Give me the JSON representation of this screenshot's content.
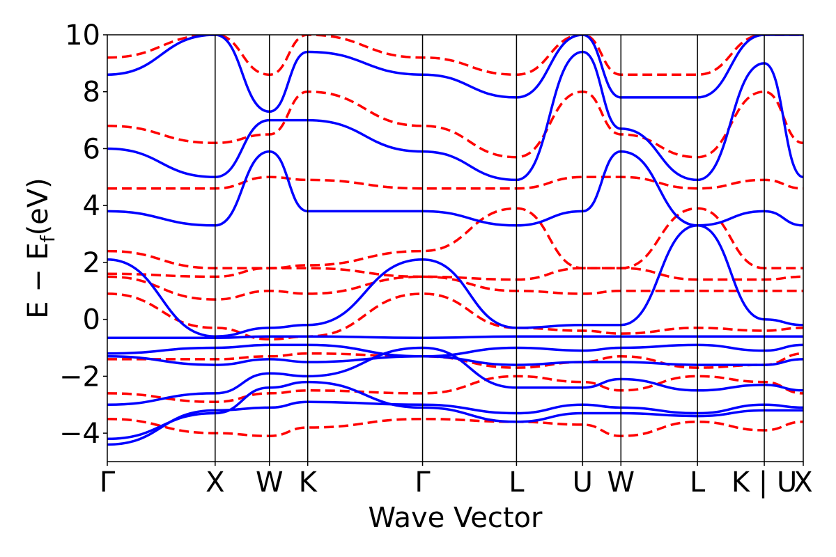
{
  "chart_data": {
    "type": "line",
    "title": "",
    "xlabel": "Wave Vector",
    "ylabel": "E − E",
    "ylabel_subscript": "f",
    "ylabel_unit": "(eV)",
    "ylim": [
      -5,
      10
    ],
    "yticks": [
      -4,
      -2,
      0,
      2,
      4,
      6,
      8,
      10
    ],
    "ytick_labels": [
      "−4",
      "−2",
      "0",
      "2",
      "4",
      "6",
      "8",
      "10"
    ],
    "xlim": [
      0,
      1
    ],
    "kpoints": [
      {
        "label": "Γ",
        "x": 0.0
      },
      {
        "label": "X",
        "x": 0.155
      },
      {
        "label": "W",
        "x": 0.233
      },
      {
        "label": "K",
        "x": 0.288
      },
      {
        "label": "Γ",
        "x": 0.453
      },
      {
        "label": "L",
        "x": 0.588
      },
      {
        "label": "U",
        "x": 0.683
      },
      {
        "label": "W",
        "x": 0.738
      },
      {
        "label": "L",
        "x": 0.848
      },
      {
        "label": "K | U",
        "x": 0.944
      },
      {
        "label": "X",
        "x": 1.0
      }
    ],
    "grid": false,
    "legend": "none",
    "series_styles": [
      {
        "id": "solid",
        "color": "#0000ff",
        "style": "solid"
      },
      {
        "id": "dashed",
        "color": "#ff0000",
        "style": "dashed"
      }
    ],
    "series": [
      {
        "style": "solid",
        "x": [
          0,
          0.155,
          0.233,
          0.288,
          0.453,
          0.588,
          0.683,
          0.738,
          0.848,
          0.944,
          1.0
        ],
        "y": [
          -4.4,
          -3.2,
          -3.1,
          -2.9,
          -3.0,
          -3.3,
          -3.0,
          -3.1,
          -3.3,
          -3.0,
          -3.1
        ]
      },
      {
        "style": "solid",
        "x": [
          0,
          0.155,
          0.233,
          0.288,
          0.453,
          0.588,
          0.683,
          0.738,
          0.848,
          0.944,
          1.0
        ],
        "y": [
          -4.2,
          -3.3,
          -2.4,
          -2.2,
          -3.1,
          -3.6,
          -3.3,
          -3.3,
          -3.4,
          -3.2,
          -3.2
        ]
      },
      {
        "style": "solid",
        "x": [
          0,
          0.155,
          0.233,
          0.288,
          0.453,
          0.588,
          0.683,
          0.738,
          0.848,
          0.944,
          1.0
        ],
        "y": [
          -3.0,
          -2.6,
          -1.9,
          -2.0,
          -1.0,
          -2.4,
          -2.4,
          -2.1,
          -2.5,
          -2.3,
          -2.5
        ]
      },
      {
        "style": "solid",
        "x": [
          0,
          0.155,
          0.233,
          0.288,
          0.453,
          0.588,
          0.683,
          0.738,
          0.848,
          0.944,
          1.0
        ],
        "y": [
          -1.3,
          -1.6,
          -1.4,
          -1.5,
          -1.3,
          -1.6,
          -1.5,
          -1.5,
          -1.6,
          -1.6,
          -1.4
        ]
      },
      {
        "style": "solid",
        "x": [
          0,
          0.155,
          0.233,
          0.288,
          0.453,
          0.588,
          0.683,
          0.738,
          0.848,
          0.944,
          1.0
        ],
        "y": [
          -1.2,
          -1.0,
          -0.9,
          -0.9,
          -1.3,
          -1.0,
          -1.1,
          -1.0,
          -0.9,
          -1.1,
          -0.9
        ]
      },
      {
        "style": "solid",
        "x": [
          0,
          0.155,
          0.233,
          0.288,
          0.453,
          0.588,
          0.683,
          0.738,
          0.848,
          0.944,
          1.0
        ],
        "y": [
          -0.65,
          -0.65,
          -0.6,
          -0.6,
          -0.65,
          -0.6,
          -0.6,
          -0.6,
          -0.6,
          -0.6,
          -0.6
        ]
      },
      {
        "style": "solid",
        "x": [
          0,
          0.155,
          0.233,
          0.288,
          0.453,
          0.588,
          0.683,
          0.738,
          0.848,
          0.944,
          1.0
        ],
        "y": [
          2.1,
          -0.6,
          -0.3,
          -0.2,
          2.1,
          -0.3,
          -0.2,
          -0.2,
          3.3,
          0.0,
          -0.2
        ]
      },
      {
        "style": "solid",
        "x": [
          0,
          0.155,
          0.233,
          0.288,
          0.453,
          0.588,
          0.683,
          0.738,
          0.848,
          0.944,
          1.0
        ],
        "y": [
          3.8,
          3.3,
          5.9,
          3.8,
          3.8,
          3.3,
          3.8,
          5.9,
          3.3,
          3.8,
          3.3
        ]
      },
      {
        "style": "solid",
        "x": [
          0,
          0.155,
          0.233,
          0.288,
          0.453,
          0.588,
          0.683,
          0.738,
          0.848,
          0.944,
          1.0
        ],
        "y": [
          6.0,
          5.0,
          7.0,
          7.0,
          5.9,
          4.9,
          9.4,
          6.7,
          4.9,
          9.0,
          5.0
        ]
      },
      {
        "style": "solid",
        "x": [
          0,
          0.155,
          0.233,
          0.288,
          0.453,
          0.588,
          0.683,
          0.738,
          0.848,
          0.944,
          1.0
        ],
        "y": [
          8.6,
          10.0,
          7.3,
          9.4,
          8.6,
          7.8,
          10.0,
          7.8,
          7.8,
          10.0,
          10.0
        ]
      },
      {
        "style": "dashed",
        "x": [
          0,
          0.155,
          0.233,
          0.288,
          0.453,
          0.588,
          0.683,
          0.738,
          0.848,
          0.944,
          1.0
        ],
        "y": [
          -3.5,
          -4.0,
          -4.1,
          -3.8,
          -3.5,
          -3.6,
          -3.7,
          -4.1,
          -3.6,
          -3.9,
          -3.6
        ]
      },
      {
        "style": "dashed",
        "x": [
          0,
          0.155,
          0.233,
          0.288,
          0.453,
          0.588,
          0.683,
          0.738,
          0.848,
          0.944,
          1.0
        ],
        "y": [
          -2.6,
          -2.9,
          -2.6,
          -2.5,
          -2.6,
          -2.0,
          -2.2,
          -2.5,
          -2.0,
          -2.2,
          -2.6
        ]
      },
      {
        "style": "dashed",
        "x": [
          0,
          0.155,
          0.233,
          0.288,
          0.453,
          0.588,
          0.683,
          0.738,
          0.848,
          0.944,
          1.0
        ],
        "y": [
          -1.4,
          -1.4,
          -1.3,
          -1.2,
          -1.3,
          -1.7,
          -1.5,
          -1.3,
          -1.7,
          -1.6,
          -1.2
        ]
      },
      {
        "style": "dashed",
        "x": [
          0,
          0.155,
          0.233,
          0.288,
          0.453,
          0.588,
          0.683,
          0.738,
          0.848,
          0.944,
          1.0
        ],
        "y": [
          0.9,
          -0.3,
          -0.7,
          -0.6,
          0.9,
          -0.3,
          -0.4,
          -0.5,
          -0.3,
          -0.4,
          -0.3
        ]
      },
      {
        "style": "dashed",
        "x": [
          0,
          0.155,
          0.233,
          0.288,
          0.453,
          0.588,
          0.683,
          0.738,
          0.848,
          0.944,
          1.0
        ],
        "y": [
          1.5,
          0.7,
          1.0,
          0.9,
          1.5,
          1.0,
          0.9,
          1.0,
          1.0,
          1.0,
          1.0
        ]
      },
      {
        "style": "dashed",
        "x": [
          0,
          0.155,
          0.233,
          0.288,
          0.453,
          0.588,
          0.683,
          0.738,
          0.848,
          0.944,
          1.0
        ],
        "y": [
          1.6,
          1.5,
          1.8,
          1.8,
          1.5,
          1.4,
          1.8,
          1.8,
          1.4,
          1.4,
          1.5
        ]
      },
      {
        "style": "dashed",
        "x": [
          0,
          0.155,
          0.233,
          0.288,
          0.453,
          0.588,
          0.683,
          0.738,
          0.848,
          0.944,
          1.0
        ],
        "y": [
          2.4,
          1.8,
          1.8,
          1.9,
          2.4,
          3.9,
          1.8,
          1.8,
          3.9,
          1.8,
          1.8
        ]
      },
      {
        "style": "dashed",
        "x": [
          0,
          0.155,
          0.233,
          0.288,
          0.453,
          0.588,
          0.683,
          0.738,
          0.848,
          0.944,
          1.0
        ],
        "y": [
          4.6,
          4.6,
          5.0,
          4.9,
          4.6,
          4.6,
          5.0,
          5.0,
          4.6,
          4.9,
          4.6
        ]
      },
      {
        "style": "dashed",
        "x": [
          0,
          0.155,
          0.233,
          0.288,
          0.453,
          0.588,
          0.683,
          0.738,
          0.848,
          0.944,
          1.0
        ],
        "y": [
          6.8,
          6.2,
          6.5,
          8.0,
          6.8,
          5.7,
          8.0,
          6.5,
          5.7,
          8.0,
          6.2
        ]
      },
      {
        "style": "dashed",
        "x": [
          0,
          0.155,
          0.233,
          0.288,
          0.453,
          0.588,
          0.683,
          0.738,
          0.848,
          0.944,
          1.0
        ],
        "y": [
          9.2,
          10.0,
          8.6,
          10.0,
          9.2,
          8.6,
          10.0,
          8.6,
          8.6,
          10.0,
          10.0
        ]
      }
    ]
  }
}
